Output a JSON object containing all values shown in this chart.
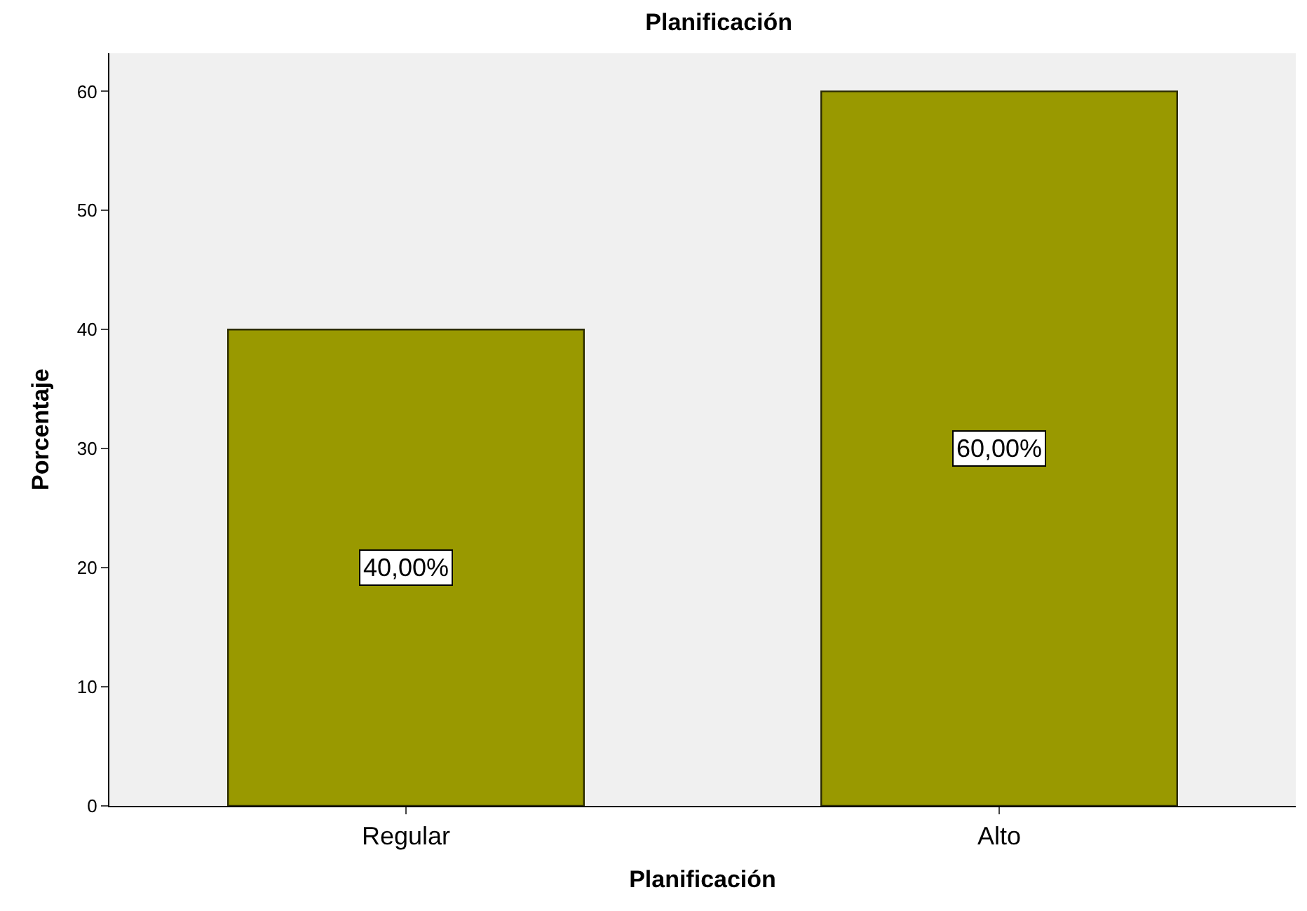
{
  "chart_data": {
    "type": "bar",
    "title": "Planificación",
    "xlabel": "Planificación",
    "ylabel": "Porcentaje",
    "categories": [
      "Regular",
      "Alto"
    ],
    "values": [
      40,
      60
    ],
    "value_labels": [
      "40,00%",
      "60,00%"
    ],
    "color": "#999900",
    "ylim": [
      0,
      63.2
    ],
    "yticks": [
      0,
      10,
      20,
      30,
      40,
      50,
      60
    ],
    "grid": false,
    "legend": false
  }
}
